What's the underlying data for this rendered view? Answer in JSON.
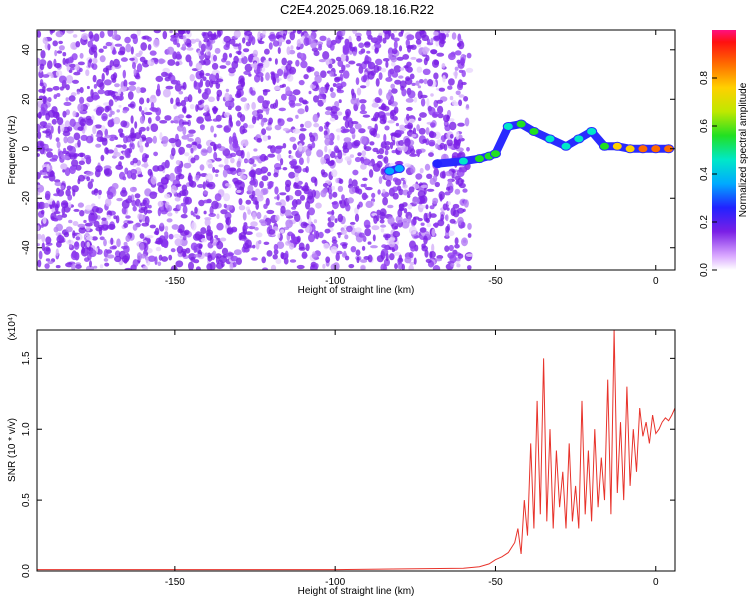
{
  "title": "C2E4.2025.069.18.16.R22",
  "colors": {
    "snr_line": "#e8332b",
    "noise": "#7a1fe6",
    "axis": "#000000"
  },
  "chart_data": [
    {
      "type": "heatmap",
      "xlabel": "Height of straight line (km)",
      "ylabel": "Frequency (Hz)",
      "xlim": [
        -193,
        6
      ],
      "ylim": [
        -49,
        48
      ],
      "xticks": [
        -150,
        -100,
        -50,
        0
      ],
      "yticks": [
        40,
        20,
        0,
        -20,
        -40
      ],
      "grid": false,
      "colorbar": {
        "label": "Normalized spectral amplitude",
        "range": [
          0,
          1
        ],
        "ticks": [
          "0.0",
          "0.2",
          "0.4",
          "0.6",
          "0.8"
        ],
        "tick_values": [
          0,
          0.2,
          0.4,
          0.6,
          0.8
        ]
      },
      "noise_region_x": [
        -193,
        -58
      ],
      "signal_track": [
        {
          "x": -83,
          "y": -9,
          "a": 0.35
        },
        {
          "x": -80,
          "y": -8,
          "a": 0.4
        },
        {
          "x": -68,
          "y": -6,
          "a": 0.3
        },
        {
          "x": -60,
          "y": -5,
          "a": 0.45
        },
        {
          "x": -55,
          "y": -4,
          "a": 0.55
        },
        {
          "x": -52,
          "y": -3,
          "a": 0.6
        },
        {
          "x": -50,
          "y": -2,
          "a": 0.55
        },
        {
          "x": -46,
          "y": 9,
          "a": 0.5
        },
        {
          "x": -42,
          "y": 10,
          "a": 0.6
        },
        {
          "x": -38,
          "y": 7,
          "a": 0.55
        },
        {
          "x": -33,
          "y": 4,
          "a": 0.5
        },
        {
          "x": -28,
          "y": 1,
          "a": 0.45
        },
        {
          "x": -24,
          "y": 4,
          "a": 0.5
        },
        {
          "x": -20,
          "y": 7,
          "a": 0.45
        },
        {
          "x": -16,
          "y": 1,
          "a": 0.6
        },
        {
          "x": -12,
          "y": 1,
          "a": 0.7
        },
        {
          "x": -8,
          "y": 0,
          "a": 0.8
        },
        {
          "x": -4,
          "y": 0,
          "a": 0.9
        },
        {
          "x": 0,
          "y": 0,
          "a": 0.95
        },
        {
          "x": 4,
          "y": 0,
          "a": 0.85
        }
      ]
    },
    {
      "type": "line",
      "xlabel": "Height of straight line (km)",
      "ylabel": "SNR (10 * v/v)",
      "ylabel_multiplier": "(x10⁴)",
      "xlim": [
        -193,
        6
      ],
      "ylim": [
        0,
        1.7
      ],
      "xticks": [
        -150,
        -100,
        -50,
        0
      ],
      "yticks": [
        "0.0",
        "0.5",
        "1.0",
        "1.5"
      ],
      "ytick_values": [
        0,
        0.5,
        1.0,
        1.5
      ],
      "grid": false,
      "series": [
        {
          "x": [
            -193,
            -150,
            -100,
            -60,
            -55,
            -52,
            -50,
            -48,
            -46,
            -44,
            -43,
            -42,
            -41,
            -40,
            -39,
            -38,
            -37,
            -36,
            -35,
            -34,
            -33,
            -32,
            -31,
            -30,
            -29,
            -28,
            -27,
            -26,
            -25,
            -24,
            -23,
            -22,
            -21,
            -20,
            -19,
            -18,
            -17,
            -16,
            -15,
            -14,
            -13,
            -12,
            -11,
            -10,
            -9,
            -8,
            -7,
            -6,
            -5,
            -4,
            -3,
            -2,
            -1,
            0,
            1,
            2,
            3,
            4,
            5,
            6
          ],
          "values": [
            0.01,
            0.01,
            0.01,
            0.02,
            0.03,
            0.05,
            0.08,
            0.1,
            0.13,
            0.2,
            0.3,
            0.12,
            0.5,
            0.25,
            0.9,
            0.3,
            1.2,
            0.4,
            1.5,
            0.35,
            1.0,
            0.3,
            0.85,
            0.45,
            0.7,
            0.3,
            0.9,
            0.35,
            0.6,
            0.3,
            1.2,
            0.4,
            0.85,
            0.35,
            1.0,
            0.45,
            0.8,
            0.5,
            1.35,
            0.4,
            1.7,
            0.55,
            1.05,
            0.5,
            1.3,
            0.6,
            1.0,
            0.7,
            1.15,
            0.95,
            1.05,
            0.9,
            1.1,
            0.97,
            1.0,
            1.05,
            1.08,
            1.06,
            1.1,
            1.15
          ]
        }
      ]
    }
  ]
}
